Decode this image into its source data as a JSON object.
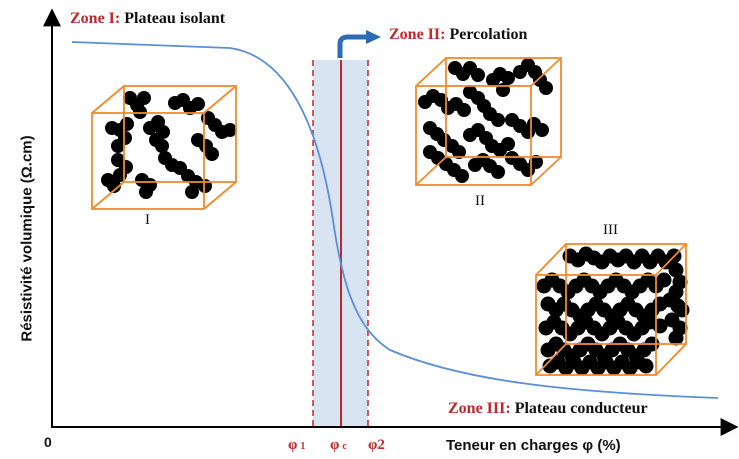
{
  "labels": {
    "zone1_num": "Zone I:",
    "zone1_text": "Plateau isolant",
    "zone2_num": "Zone II:",
    "zone2_text": "Percolation",
    "zone3_num": "Zone III:",
    "zone3_text": "Plateau conducteur"
  },
  "axes": {
    "ylabel": "Résistivité volumique (Ω.cm)",
    "xlabel": "Teneur en charges φ (%)",
    "origin": "0"
  },
  "markers": {
    "phi1": "φ",
    "phi1_sub": "1",
    "phic": "φ",
    "phic_sub": "c",
    "phi2": "φ2"
  },
  "cubes": {
    "c1": "I",
    "c2": "II",
    "c3": "III"
  },
  "colors": {
    "zone_accent": "#c0282d",
    "curve": "#5b8fd6",
    "cube_edge": "#f08a2c",
    "band": "#d9e4f3",
    "arrow": "#2e6bb0",
    "particles": "#000000"
  }
}
